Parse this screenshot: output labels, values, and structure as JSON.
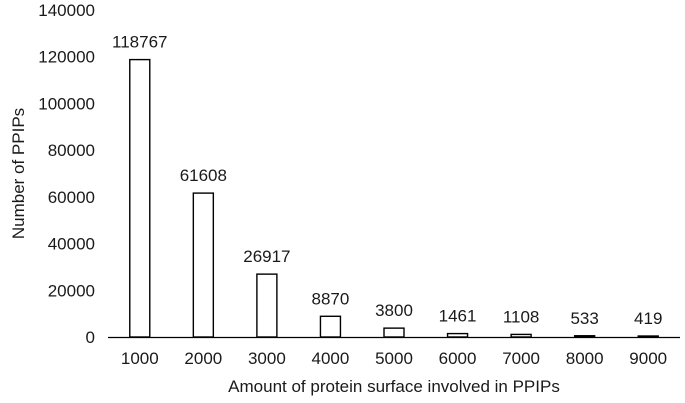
{
  "chart_data": {
    "type": "bar",
    "title": "",
    "xlabel": "Amount of protein surface involved in PPIPs",
    "ylabel": "Number of PPIPs",
    "categories": [
      "1000",
      "2000",
      "3000",
      "4000",
      "5000",
      "6000",
      "7000",
      "8000",
      "9000"
    ],
    "values": [
      118767,
      61608,
      26917,
      8870,
      3800,
      1461,
      1108,
      533,
      419
    ],
    "data_labels": [
      "118767",
      "61608",
      "26917",
      "8870",
      "3800",
      "1461",
      "1108",
      "533",
      "419"
    ],
    "ylim": [
      0,
      140000
    ],
    "yticks": [
      0,
      20000,
      40000,
      60000,
      80000,
      100000,
      120000,
      140000
    ],
    "ytick_labels": [
      "0",
      "20000",
      "40000",
      "60000",
      "80000",
      "100000",
      "120000",
      "140000"
    ],
    "grid": false,
    "legend": "none",
    "colors": {
      "bar_fill": "#ffffff",
      "bar_stroke": "#000000",
      "axis": "#000000",
      "text": "#1a1a1a"
    }
  }
}
